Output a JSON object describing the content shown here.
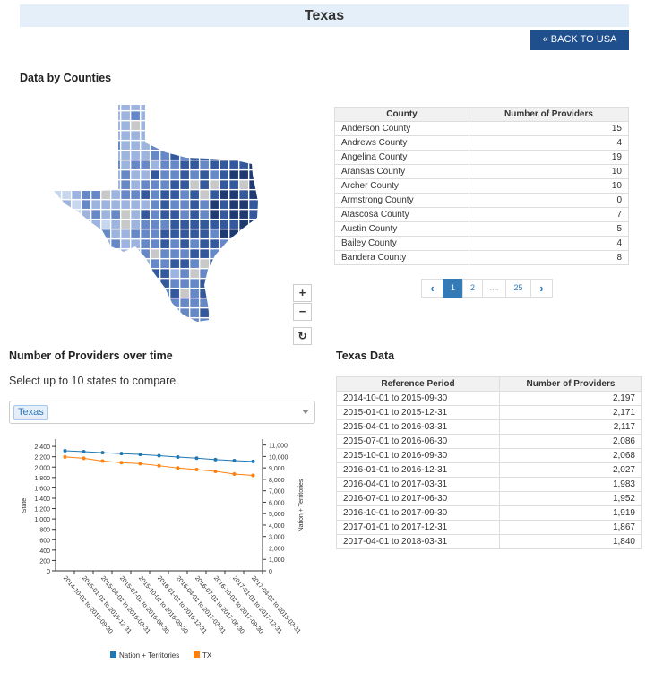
{
  "header": {
    "title": "Texas",
    "back_button": "« BACK TO USA"
  },
  "counties": {
    "title": "Data by Counties",
    "columns": [
      "County",
      "Number of Providers"
    ],
    "rows": [
      [
        "Anderson County",
        "15"
      ],
      [
        "Andrews County",
        "4"
      ],
      [
        "Angelina County",
        "19"
      ],
      [
        "Aransas County",
        "10"
      ],
      [
        "Archer County",
        "10"
      ],
      [
        "Armstrong County",
        "0"
      ],
      [
        "Atascosa County",
        "7"
      ],
      [
        "Austin County",
        "5"
      ],
      [
        "Bailey County",
        "4"
      ],
      [
        "Bandera County",
        "8"
      ]
    ],
    "pagination": {
      "prev": "‹",
      "pages": [
        "1",
        "2",
        "....",
        "25"
      ],
      "next": "›",
      "active": "1"
    }
  },
  "map_controls": {
    "zoom_in": "+",
    "zoom_out": "−",
    "reset": "↻"
  },
  "colors": {
    "accent": "#1f4f8d",
    "nation": "#1f77b4",
    "state": "#ff7f0e",
    "map_shades": [
      "#c9d7ee",
      "#9db5de",
      "#6688c6",
      "#34589c",
      "#1f3a70"
    ]
  },
  "over_time": {
    "title": "Number of Providers over time",
    "instruction": "Select up to 10 states to compare.",
    "selected_state": "Texas"
  },
  "texas_data": {
    "title": "Texas Data",
    "columns": [
      "Reference Period",
      "Number of Providers"
    ],
    "rows": [
      [
        "2014-10-01 to 2015-09-30",
        "2,197"
      ],
      [
        "2015-01-01 to 2015-12-31",
        "2,171"
      ],
      [
        "2015-04-01 to 2016-03-31",
        "2,117"
      ],
      [
        "2015-07-01 to 2016-06-30",
        "2,086"
      ],
      [
        "2015-10-01 to 2016-09-30",
        "2,068"
      ],
      [
        "2016-01-01 to 2016-12-31",
        "2,027"
      ],
      [
        "2016-04-01 to 2017-03-31",
        "1,983"
      ],
      [
        "2016-07-01 to 2017-06-30",
        "1,952"
      ],
      [
        "2016-10-01 to 2017-09-30",
        "1,919"
      ],
      [
        "2017-01-01 to 2017-12-31",
        "1,867"
      ],
      [
        "2017-04-01 to 2018-03-31",
        "1,840"
      ]
    ]
  },
  "chart_data": {
    "type": "line",
    "categories": [
      "2014-10-01 to 2015-09-30",
      "2015-01-01 to 2015-12-31",
      "2015-04-01 to 2016-03-31",
      "2015-07-01 to 2016-06-30",
      "2015-10-01 to 2016-09-30",
      "2016-01-01 to 2016-12-31",
      "2016-04-01 to 2017-03-31",
      "2016-07-01 to 2017-06-30",
      "2016-10-01 to 2017-09-30",
      "2017-01-01 to 2017-12-31",
      "2017-04-01 to 2018-03-31"
    ],
    "series": [
      {
        "name": "Nation + Territories",
        "axis": "right",
        "values": [
          10500,
          10420,
          10330,
          10260,
          10180,
          10070,
          9950,
          9850,
          9730,
          9640,
          9570
        ]
      },
      {
        "name": "TX",
        "axis": "left",
        "values": [
          2197,
          2171,
          2117,
          2086,
          2068,
          2027,
          1983,
          1952,
          1919,
          1867,
          1840
        ]
      }
    ],
    "ylabel": "State",
    "y2label": "Nation + Territories",
    "ylim": [
      0,
      2540
    ],
    "y2lim": [
      0,
      11520
    ],
    "yticks": [
      "0",
      "200",
      "400",
      "600",
      "800",
      "1,000",
      "1,200",
      "1,400",
      "1,600",
      "1,800",
      "2,000",
      "2,200",
      "2,400"
    ],
    "y2ticks": [
      "0",
      "1,000",
      "2,000",
      "3,000",
      "4,000",
      "5,000",
      "6,000",
      "7,000",
      "8,000",
      "9,000",
      "10,000",
      "11,000"
    ],
    "legend": "bottom"
  }
}
